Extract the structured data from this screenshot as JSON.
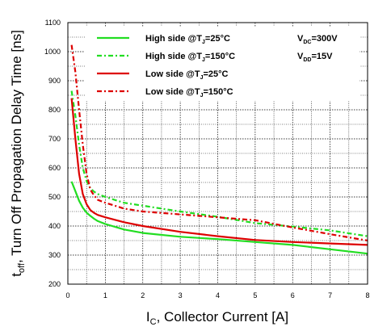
{
  "chart_data": {
    "type": "line",
    "xlabel_main": "I",
    "xlabel_sub": "C",
    "xlabel_rest": ", Collector Current [A]",
    "ylabel_main": "t",
    "ylabel_sub": "off",
    "ylabel_rest": ", Turn Off Propagation Delay Time [ns]",
    "xlim": [
      0,
      8
    ],
    "ylim": [
      200,
      1100
    ],
    "xticks": [
      "0",
      "1",
      "2",
      "3",
      "4",
      "5",
      "6",
      "7",
      "8"
    ],
    "yticks": [
      "200",
      "300",
      "400",
      "500",
      "600",
      "700",
      "800",
      "900",
      "1000",
      "1100"
    ],
    "grid": true,
    "legend_position": "top",
    "series": [
      {
        "name_pre": "High side @T",
        "name_sub": "J",
        "name_post": "=25°C",
        "color": "#22dd22",
        "dash": "solid",
        "x": [
          0.1,
          0.2,
          0.3,
          0.4,
          0.5,
          0.6,
          0.7,
          0.8,
          1.0,
          1.5,
          2.0,
          3.0,
          4.0,
          5.0,
          6.0,
          7.0,
          8.0
        ],
        "y": [
          553,
          520,
          487,
          463,
          446,
          435,
          425,
          417,
          407,
          388,
          376,
          363,
          355,
          345,
          335,
          320,
          305
        ]
      },
      {
        "name_pre": "High side @T",
        "name_sub": "J",
        "name_post": "=150°C",
        "color": "#22dd22",
        "dash": "dashdot",
        "x": [
          0.1,
          0.2,
          0.3,
          0.4,
          0.5,
          0.6,
          0.7,
          0.8,
          1.0,
          1.5,
          2.0,
          3.0,
          4.0,
          5.0,
          6.0,
          7.0,
          8.0
        ],
        "y": [
          865,
          780,
          680,
          600,
          555,
          530,
          518,
          510,
          500,
          480,
          470,
          450,
          432,
          410,
          398,
          385,
          365
        ]
      },
      {
        "name_pre": "Low side @T",
        "name_sub": "J",
        "name_post": "=25°C",
        "color": "#dd0000",
        "dash": "solid",
        "x": [
          0.1,
          0.2,
          0.3,
          0.4,
          0.5,
          0.6,
          0.7,
          0.8,
          1.0,
          1.5,
          2.0,
          3.0,
          4.0,
          5.0,
          6.0,
          7.0,
          8.0
        ],
        "y": [
          840,
          700,
          580,
          510,
          475,
          455,
          445,
          438,
          430,
          413,
          400,
          380,
          365,
          352,
          345,
          340,
          335
        ]
      },
      {
        "name_pre": "Low side @T",
        "name_sub": "J",
        "name_post": "=150°C",
        "color": "#dd0000",
        "dash": "dashdot",
        "x": [
          0.1,
          0.2,
          0.3,
          0.4,
          0.5,
          0.6,
          0.7,
          0.8,
          1.0,
          1.5,
          2.0,
          3.0,
          4.0,
          5.0,
          6.0,
          7.0,
          8.0
        ],
        "y": [
          1023,
          930,
          800,
          680,
          580,
          525,
          505,
          490,
          480,
          460,
          450,
          440,
          430,
          420,
          395,
          372,
          350
        ]
      }
    ],
    "conditions": [
      {
        "main": "V",
        "sub": "DC",
        "rest": "=300V"
      },
      {
        "main": "V",
        "sub": "DD",
        "rest": "=15V"
      }
    ]
  }
}
